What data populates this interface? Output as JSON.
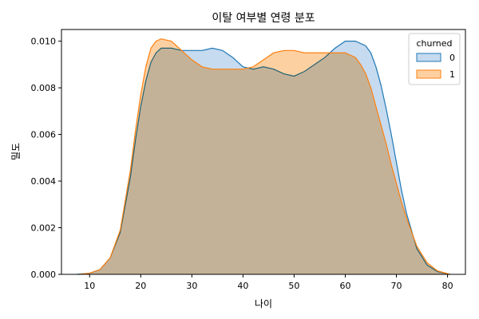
{
  "chart_data": {
    "type": "area",
    "title": "이탈 여부별 연령 분포",
    "xlabel": "나이",
    "ylabel": "밀도",
    "xlim": [
      4.5,
      83.5
    ],
    "ylim": [
      0,
      0.0105
    ],
    "xticks": [
      10,
      20,
      30,
      40,
      50,
      60,
      70,
      80
    ],
    "yticks": [
      0,
      0.002,
      0.004,
      0.006,
      0.008,
      0.01
    ],
    "xtick_labels": [
      "10",
      "20",
      "30",
      "40",
      "50",
      "60",
      "70",
      "80"
    ],
    "ytick_labels": [
      "0.000",
      "0.002",
      "0.004",
      "0.006",
      "0.008",
      "0.010"
    ],
    "grid": false,
    "legend": {
      "title": "churned",
      "placement": "top-right"
    },
    "series": [
      {
        "name": "0",
        "color": "#1f77b4",
        "fill": "#c6dbef",
        "points": [
          [
            7.5,
            0.0
          ],
          [
            10,
            5e-05
          ],
          [
            12,
            0.0002
          ],
          [
            14,
            0.0007
          ],
          [
            16,
            0.0018
          ],
          [
            18,
            0.0042
          ],
          [
            19,
            0.0058
          ],
          [
            20,
            0.0072
          ],
          [
            21,
            0.0083
          ],
          [
            22,
            0.0091
          ],
          [
            23,
            0.0095
          ],
          [
            24,
            0.0097
          ],
          [
            26,
            0.0097
          ],
          [
            28,
            0.0096
          ],
          [
            30,
            0.0096
          ],
          [
            32,
            0.0096
          ],
          [
            34,
            0.0097
          ],
          [
            36,
            0.0096
          ],
          [
            38,
            0.0093
          ],
          [
            40,
            0.0089
          ],
          [
            42,
            0.0088
          ],
          [
            44,
            0.0089
          ],
          [
            46,
            0.0088
          ],
          [
            48,
            0.0086
          ],
          [
            50,
            0.0085
          ],
          [
            52,
            0.0087
          ],
          [
            54,
            0.009
          ],
          [
            56,
            0.0093
          ],
          [
            58,
            0.0097
          ],
          [
            60,
            0.01
          ],
          [
            62,
            0.01
          ],
          [
            64,
            0.0098
          ],
          [
            65,
            0.0095
          ],
          [
            66,
            0.0089
          ],
          [
            67,
            0.0081
          ],
          [
            68,
            0.0071
          ],
          [
            69,
            0.006
          ],
          [
            70,
            0.0048
          ],
          [
            71,
            0.0036
          ],
          [
            72,
            0.0026
          ],
          [
            74,
            0.0011
          ],
          [
            76,
            0.0004
          ],
          [
            78,
            0.00012
          ],
          [
            80,
            2e-05
          ],
          [
            80.5,
            0.0
          ]
        ]
      },
      {
        "name": "1",
        "color": "#ff7f0e",
        "fill": "#fdd0a2",
        "points": [
          [
            8,
            0.0
          ],
          [
            10,
            5e-05
          ],
          [
            12,
            0.0002
          ],
          [
            14,
            0.0007
          ],
          [
            16,
            0.0019
          ],
          [
            18,
            0.0045
          ],
          [
            19,
            0.0062
          ],
          [
            20,
            0.0077
          ],
          [
            21,
            0.0089
          ],
          [
            22,
            0.0097
          ],
          [
            23,
            0.01
          ],
          [
            24,
            0.0101
          ],
          [
            26,
            0.01
          ],
          [
            28,
            0.0096
          ],
          [
            30,
            0.0092
          ],
          [
            32,
            0.0089
          ],
          [
            34,
            0.0088
          ],
          [
            36,
            0.0088
          ],
          [
            38,
            0.0088
          ],
          [
            40,
            0.0088
          ],
          [
            42,
            0.0089
          ],
          [
            44,
            0.0092
          ],
          [
            46,
            0.0095
          ],
          [
            48,
            0.0096
          ],
          [
            50,
            0.0096
          ],
          [
            52,
            0.0095
          ],
          [
            54,
            0.0095
          ],
          [
            56,
            0.0095
          ],
          [
            58,
            0.0095
          ],
          [
            60,
            0.0095
          ],
          [
            62,
            0.0093
          ],
          [
            63,
            0.009
          ],
          [
            64,
            0.0086
          ],
          [
            65,
            0.008
          ],
          [
            66,
            0.0072
          ],
          [
            67,
            0.0064
          ],
          [
            68,
            0.0056
          ],
          [
            69,
            0.0047
          ],
          [
            70,
            0.0039
          ],
          [
            71,
            0.0031
          ],
          [
            72,
            0.0024
          ],
          [
            74,
            0.0012
          ],
          [
            76,
            0.0005
          ],
          [
            78,
            0.00015
          ],
          [
            80,
            3e-05
          ],
          [
            80.5,
            0.0
          ]
        ]
      }
    ]
  }
}
